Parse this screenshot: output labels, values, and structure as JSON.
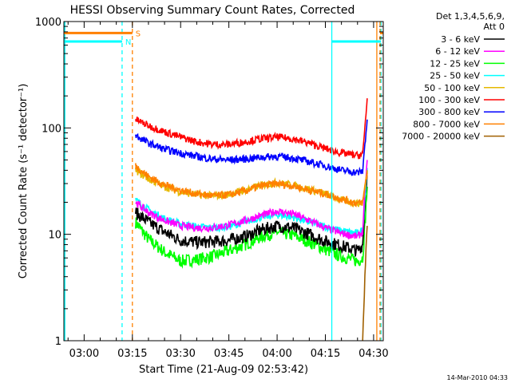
{
  "chart_data": {
    "type": "line",
    "title": "HESSI Observing Summary Count Rates, Corrected",
    "xlabel": "Start Time (21-Aug-09 02:53:42)",
    "ylabel": "Corrected Count Rate (s⁻¹ detector⁻¹)",
    "yscale": "log",
    "ylim": [
      1,
      1000
    ],
    "xlim_minutes": [
      173.7,
      273.0
    ],
    "x_ticks": [
      {
        "m": 180,
        "label": "03:00"
      },
      {
        "m": 195,
        "label": "03:15"
      },
      {
        "m": 210,
        "label": "03:30"
      },
      {
        "m": 225,
        "label": "03:45"
      },
      {
        "m": 240,
        "label": "04:00"
      },
      {
        "m": 255,
        "label": "04:15"
      },
      {
        "m": 270,
        "label": "04:30"
      }
    ],
    "y_ticks": [
      {
        "v": 1,
        "label": "1"
      },
      {
        "v": 10,
        "label": "10"
      },
      {
        "v": 100,
        "label": "100"
      },
      {
        "v": 1000,
        "label": "1000"
      }
    ],
    "legend_title": [
      "Det 1,3,4,5,6,9,",
      "Att 0"
    ],
    "legend_position": "right",
    "series": [
      {
        "name": "3 - 6 keV",
        "color": "#000000",
        "x": [
          196,
          200,
          205,
          210,
          215,
          220,
          225,
          230,
          235,
          240,
          245,
          250,
          255,
          260,
          265,
          266.6,
          267.3,
          268
        ],
        "y": [
          16,
          13,
          10.5,
          8.8,
          8.4,
          8.5,
          8.8,
          9.5,
          11,
          12,
          11.5,
          10,
          8.6,
          7.8,
          7.0,
          8.0,
          20,
          40
        ]
      },
      {
        "name": "6 - 12 keV",
        "color": "#ff00ff",
        "x": [
          196,
          200,
          205,
          210,
          215,
          220,
          225,
          230,
          235,
          240,
          245,
          250,
          255,
          260,
          265,
          266.6,
          267.3,
          268
        ],
        "y": [
          20,
          16,
          13.5,
          12,
          11.5,
          11.5,
          12.2,
          13.5,
          15,
          16.5,
          15.5,
          13.5,
          11.5,
          10.2,
          9.5,
          10.5,
          25,
          50
        ]
      },
      {
        "name": "12 - 25 keV",
        "color": "#00ff00",
        "x": [
          196,
          200,
          205,
          210,
          215,
          220,
          225,
          230,
          235,
          240,
          245,
          250,
          255,
          260,
          265,
          266.6,
          267.3,
          268
        ],
        "y": [
          13,
          9,
          6.8,
          5.6,
          5.8,
          6.2,
          7.0,
          8.0,
          9.5,
          10.5,
          9.8,
          8.5,
          7.2,
          6.2,
          5.6,
          6.0,
          12,
          28
        ]
      },
      {
        "name": "25 - 50 keV",
        "color": "#00ffff",
        "x": [
          196,
          200,
          205,
          210,
          215,
          220,
          225,
          230,
          235,
          240,
          245,
          250,
          255,
          260,
          265,
          266.6,
          267.3,
          268
        ],
        "y": [
          21,
          17,
          14,
          12.5,
          11.8,
          11.5,
          11.8,
          13,
          14.5,
          15.2,
          14.5,
          13,
          11.8,
          10.8,
          10.2,
          11,
          22,
          42
        ]
      },
      {
        "name": "50 - 100 keV",
        "color": "#e6b800",
        "x": [
          196,
          200,
          205,
          210,
          215,
          220,
          225,
          230,
          235,
          240,
          245,
          250,
          255,
          260,
          265,
          266.6,
          267.3,
          268
        ],
        "y": [
          40,
          33,
          28,
          25,
          23.5,
          23,
          23.8,
          26,
          29,
          30.5,
          29,
          26.5,
          24,
          21,
          19.5,
          20,
          28,
          40
        ]
      },
      {
        "name": "100 - 300 keV",
        "color": "#ff0000",
        "x": [
          196,
          200,
          205,
          210,
          215,
          220,
          225,
          230,
          235,
          240,
          245,
          250,
          255,
          260,
          265,
          266.6,
          267.3,
          268
        ],
        "y": [
          120,
          105,
          92,
          82,
          74,
          70,
          70,
          74,
          79,
          82,
          79,
          72,
          64,
          58,
          55,
          56,
          100,
          190
        ]
      },
      {
        "name": "300 - 800 keV",
        "color": "#0000ff",
        "x": [
          196,
          200,
          205,
          210,
          215,
          220,
          225,
          230,
          235,
          240,
          245,
          250,
          255,
          260,
          265,
          266.6,
          267.3,
          268
        ],
        "y": [
          85,
          72,
          63,
          58,
          54,
          51,
          50,
          51,
          53,
          54,
          52,
          48,
          44,
          40,
          38,
          39,
          70,
          120
        ]
      },
      {
        "name": "800 - 7000 keV",
        "color": "#ff8000",
        "x": [
          196,
          200,
          205,
          210,
          215,
          220,
          225,
          230,
          235,
          240,
          245,
          250,
          255,
          260,
          265,
          266.6,
          267.3,
          268
        ],
        "y": [
          44,
          35,
          29,
          26,
          24,
          23,
          23.5,
          25.5,
          28.5,
          30,
          28.5,
          26,
          24,
          21.5,
          19.5,
          20,
          27,
          38
        ]
      },
      {
        "name": "7000 - 20000 keV",
        "color": "#a06000",
        "x": [
          266.6,
          267.3,
          268
        ],
        "y": [
          1.0,
          4,
          12
        ]
      }
    ],
    "annotations": [
      {
        "type": "bar",
        "label": "S",
        "color": "#ff8000",
        "x_from": 173.7,
        "x_to": 195.0,
        "y": 780
      },
      {
        "type": "bar",
        "label": "N",
        "color": "#00ffff",
        "x_from": 173.7,
        "x_to": 191.8,
        "y": 650
      },
      {
        "type": "bar",
        "label": "",
        "color": "#00ffff",
        "x_from": 257.0,
        "x_to": 272.3,
        "y": 650
      },
      {
        "type": "bar",
        "label": "",
        "color": "#ff8000",
        "x_from": 272.0,
        "x_to": 273.0,
        "y": 780
      }
    ],
    "vertical_lines": [
      {
        "x": 174.0,
        "color": "#00ffff",
        "style": "solid"
      },
      {
        "x": 191.8,
        "color": "#00ffff",
        "style": "dashed"
      },
      {
        "x": 195.0,
        "color": "#ff8000",
        "style": "dashed"
      },
      {
        "x": 257.0,
        "color": "#00ffff",
        "style": "solid"
      },
      {
        "x": 271.0,
        "color": "#ff8000",
        "style": "solid"
      },
      {
        "x": 272.3,
        "color": "#00ffff",
        "style": "dashed"
      },
      {
        "x": 272.0,
        "color": "#ff8000",
        "style": "dashed"
      }
    ]
  },
  "footer_timestamp": "14-Mar-2010 04:33"
}
